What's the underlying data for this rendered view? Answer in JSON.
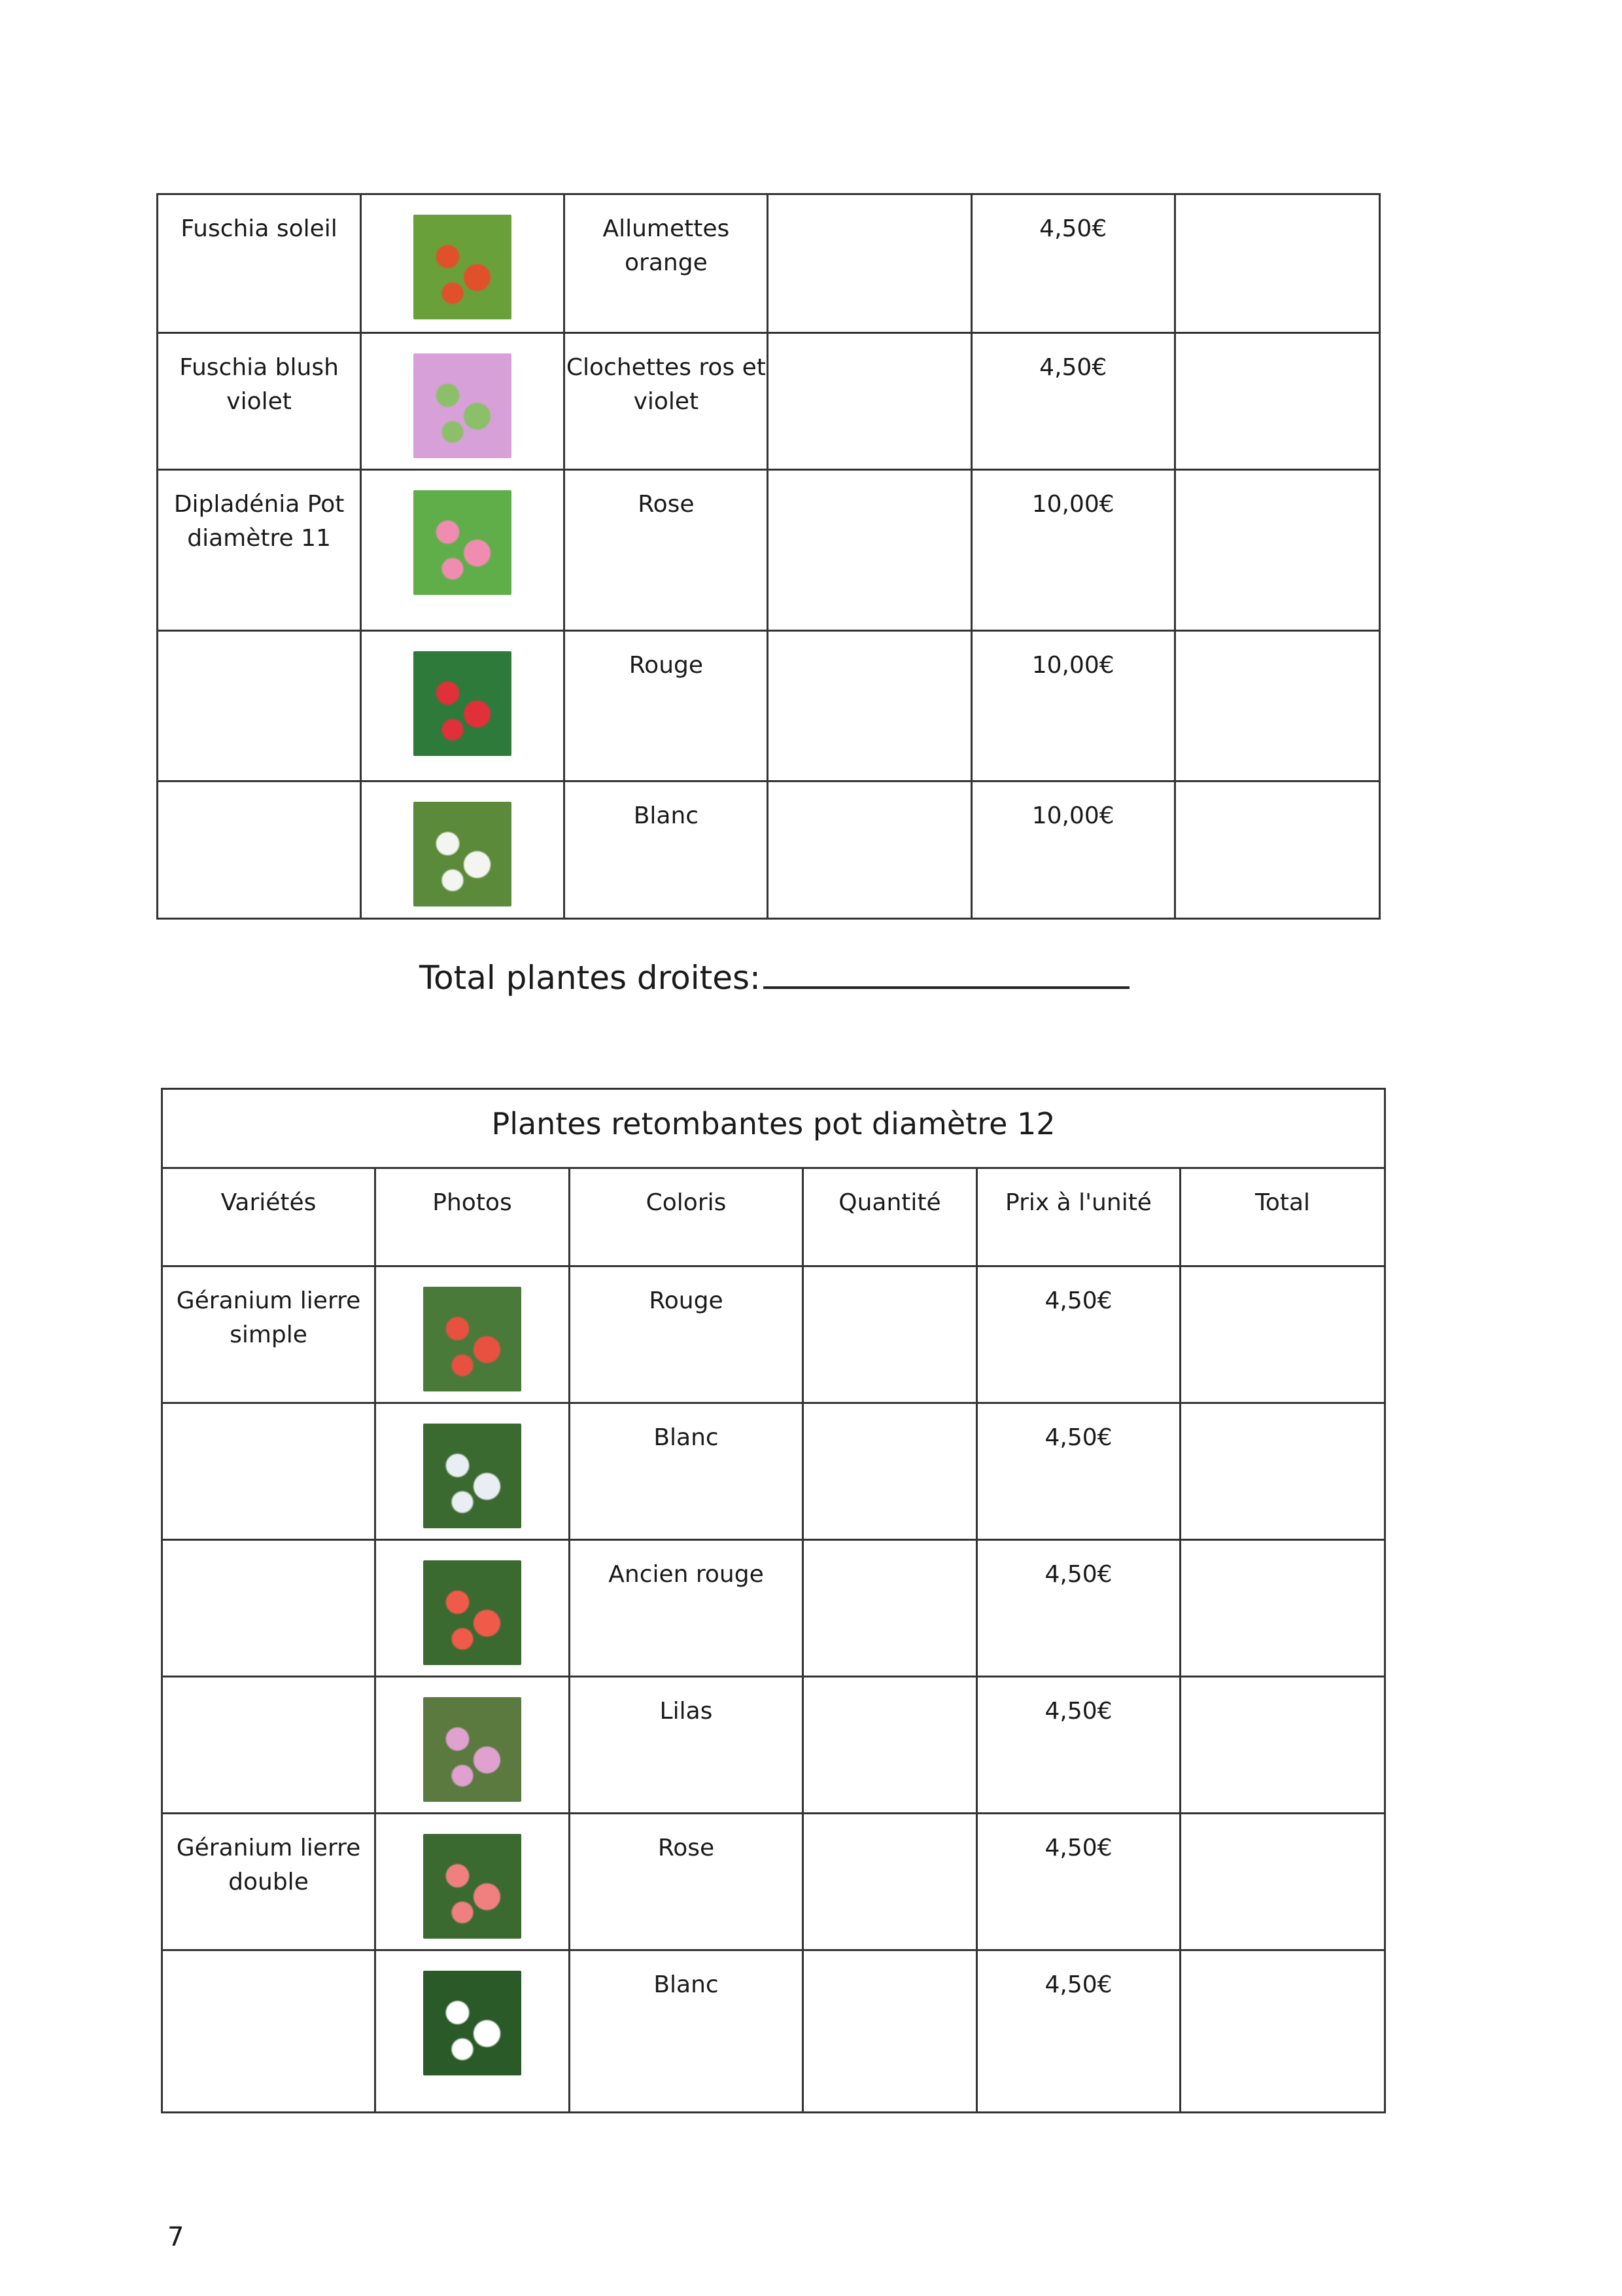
{
  "table1": {
    "rows": [
      {
        "variety": "Fuschia soleil",
        "photo": "fuchsia-orange-photo",
        "colors": "Allumettes orange",
        "price": "4,50€",
        "swatch": [
          "#6aa03a",
          "#e0502a"
        ]
      },
      {
        "variety": "Fuschia blush violet",
        "photo": "fuchsia-pink-photo",
        "colors": "Clochettes ros et violet",
        "price": "4,50€",
        "swatch": [
          "#d8a0d8",
          "#8cbf6a"
        ]
      },
      {
        "variety": "Dipladénia Pot diamètre 11",
        "photo": "dipladenia-pink-photo",
        "colors": "Rose",
        "price": "10,00€",
        "swatch": [
          "#5fae4a",
          "#f08cb0"
        ]
      },
      {
        "variety": "",
        "photo": "dipladenia-red-photo",
        "colors": "Rouge",
        "price": "10,00€",
        "swatch": [
          "#2e7a3a",
          "#e0303a"
        ]
      },
      {
        "variety": "",
        "photo": "dipladenia-white-photo",
        "colors": "Blanc",
        "price": "10,00€",
        "swatch": [
          "#5a8a3a",
          "#f4f4f0"
        ]
      }
    ]
  },
  "total_label": "Total plantes droites:",
  "table2": {
    "title": "Plantes retombantes pot diamètre 12",
    "headers": [
      "Variétés",
      "Photos",
      "Coloris",
      "Quantité",
      "Prix à l'unité",
      "Total"
    ],
    "rows": [
      {
        "variety": "Géranium lierre simple",
        "photo": "geranium-red-photo",
        "colors": "Rouge",
        "price": "4,50€",
        "swatch": [
          "#4a7a3a",
          "#e85040"
        ]
      },
      {
        "variety": "",
        "photo": "geranium-white-photo",
        "colors": "Blanc",
        "price": "4,50€",
        "swatch": [
          "#3a6a30",
          "#e8eef4"
        ]
      },
      {
        "variety": "",
        "photo": "geranium-old-red-photo",
        "colors": "Ancien rouge",
        "price": "4,50€",
        "swatch": [
          "#3a6a30",
          "#f05a48"
        ]
      },
      {
        "variety": "",
        "photo": "geranium-lilac-photo",
        "colors": "Lilas",
        "price": "4,50€",
        "swatch": [
          "#5a7a40",
          "#e0a0d0"
        ]
      },
      {
        "variety": "Géranium lierre double",
        "photo": "geranium-double-pink-photo",
        "colors": "Rose",
        "price": "4,50€",
        "swatch": [
          "#3a6a30",
          "#f08080"
        ]
      },
      {
        "variety": "",
        "photo": "geranium-double-white-photo",
        "colors": "Blanc",
        "price": "4,50€",
        "swatch": [
          "#2a5a28",
          "#ffffff"
        ]
      }
    ]
  },
  "page_number": "7"
}
